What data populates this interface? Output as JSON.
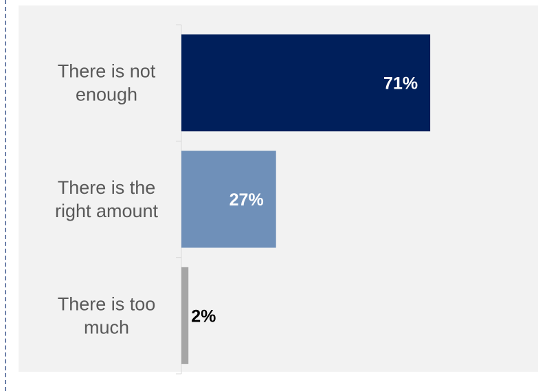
{
  "chart_data": {
    "type": "bar",
    "orientation": "horizontal",
    "categories": [
      [
        "There is not",
        "enough"
      ],
      [
        "There is the",
        "right amount"
      ],
      [
        "There is too",
        "much"
      ]
    ],
    "values": [
      71,
      27,
      2
    ],
    "value_labels": [
      "71%",
      "27%",
      "2%"
    ],
    "colors": [
      "#001f5b",
      "#6f90b9",
      "#a6a6a6"
    ],
    "label_colors": [
      "#ffffff",
      "#ffffff",
      "#000000"
    ],
    "xlim": [
      0,
      100
    ],
    "grid": false,
    "legend": "none"
  }
}
